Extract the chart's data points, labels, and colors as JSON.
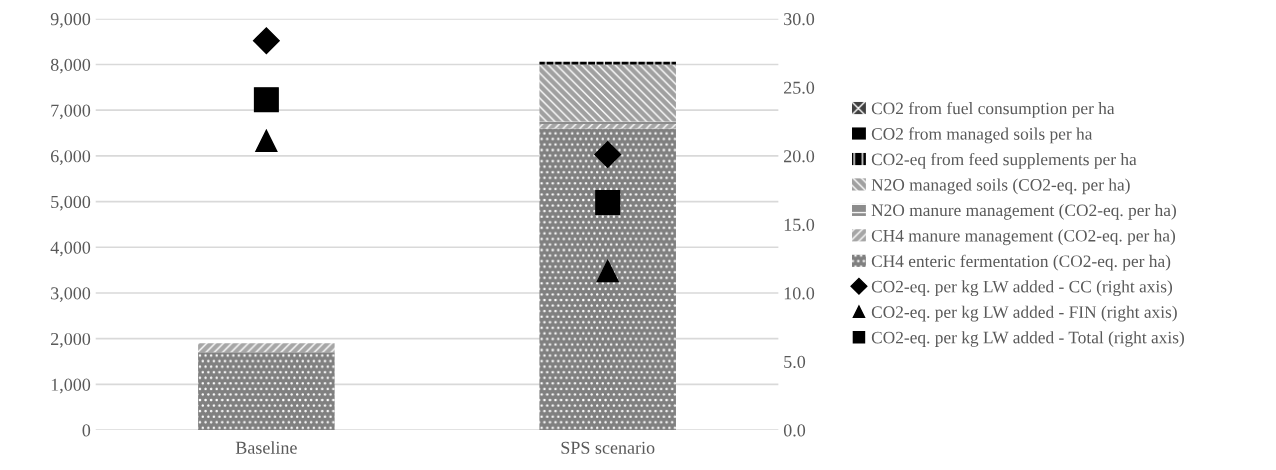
{
  "chart_data": {
    "type": "bar",
    "stacked": true,
    "categories": [
      "Baseline",
      "SPS scenario"
    ],
    "series": [
      {
        "name": "CH4 enteric fermentation (CO2-eq. per ha)",
        "color": "#808080",
        "values": [
          1700,
          6600
        ]
      },
      {
        "name": "CH4 manure management (CO2-eq. per ha)",
        "color": "#a6a6a6",
        "values": [
          200,
          100
        ]
      },
      {
        "name": "N2O manure management (CO2-eq. per ha)",
        "color": "#8c8c8c",
        "values": [
          0,
          50
        ]
      },
      {
        "name": "N2O managed soils (CO2-eq. per ha)",
        "color": "#a0a0a0",
        "values": [
          0,
          1250
        ]
      },
      {
        "name": "CO2-eq from feed supplements per ha",
        "color": "#000000",
        "values": [
          0,
          60
        ]
      },
      {
        "name": "CO2 from managed soils per ha",
        "color": "#000000",
        "values": [
          0,
          0
        ]
      },
      {
        "name": "CO2 from fuel consumption per ha",
        "color": "#404040",
        "values": [
          0,
          0
        ]
      },
      {
        "name": "CO2-eq. per kg LW added - CC (right axis)",
        "type": "scatter",
        "axis": "y2",
        "marker": "diamond",
        "color": "#000000",
        "values": [
          28.4,
          20.1
        ]
      },
      {
        "name": "CO2-eq. per kg LW added - FIN (right axis)",
        "type": "scatter",
        "axis": "y2",
        "marker": "triangle",
        "color": "#000000",
        "values": [
          21.1,
          11.6
        ]
      },
      {
        "name": "CO2-eq. per kg LW added - Total (right axis)",
        "type": "scatter",
        "axis": "y2",
        "marker": "square",
        "color": "#000000",
        "values": [
          24.1,
          16.6
        ]
      }
    ],
    "ylim": [
      0,
      9000
    ],
    "yticks": [
      {
        "value": 0,
        "label": "0"
      },
      {
        "value": 1000,
        "label": "1,000"
      },
      {
        "value": 2000,
        "label": "2,000"
      },
      {
        "value": 3000,
        "label": "3,000"
      },
      {
        "value": 4000,
        "label": "4,000"
      },
      {
        "value": 5000,
        "label": "5,000"
      },
      {
        "value": 6000,
        "label": "6,000"
      },
      {
        "value": 7000,
        "label": "7,000"
      },
      {
        "value": 8000,
        "label": "8,000"
      },
      {
        "value": 9000,
        "label": "9,000"
      }
    ],
    "y2lim": [
      0,
      30
    ],
    "y2ticks": [
      {
        "value": 0,
        "label": "0.0"
      },
      {
        "value": 5,
        "label": "5.0"
      },
      {
        "value": 10,
        "label": "10.0"
      },
      {
        "value": 15,
        "label": "15.0"
      },
      {
        "value": 20,
        "label": "20.0"
      },
      {
        "value": 25,
        "label": "25.0"
      },
      {
        "value": 30,
        "label": "30.0"
      }
    ],
    "grid": "y",
    "legend": "right"
  }
}
